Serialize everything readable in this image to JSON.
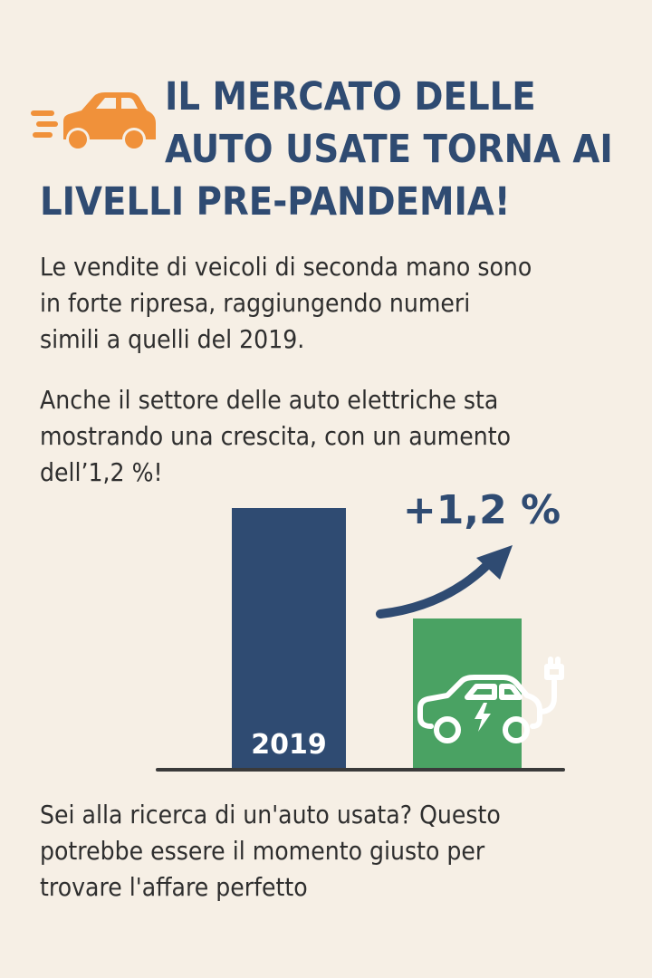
{
  "header": {
    "icon": "fast-car-icon",
    "title_lines": [
      "IL MERCATO DELLE",
      "AUTO USATE TORNA AI",
      "LIVELLI PRE-PANDEMIA!"
    ]
  },
  "paragraphs": {
    "intro": [
      "Le vendite di veicoli di seconda mano sono",
      "in forte ripresa, raggiungendo numeri",
      "simili a quelli del 2019."
    ],
    "electric": [
      "Anche il settore delle auto elettriche sta",
      "mostrando una crescita, con un aumento",
      "dell’1,2 %!"
    ],
    "closing": [
      "Sei alla ricerca di un'auto usata? Questo",
      "potrebbe essere il momento giusto per",
      "trovare l'affare perfetto"
    ]
  },
  "chart_data": {
    "type": "bar",
    "categories": [
      "2019",
      ""
    ],
    "bar_labels": [
      "2019",
      ""
    ],
    "annotation": "+1,2 %",
    "icons": [
      "",
      "electric-car-plug-icon"
    ],
    "colors": [
      "#2f4b72",
      "#4aa263"
    ]
  },
  "colors": {
    "background": "#f6efe5",
    "headline": "#2f4b72",
    "text": "#2e2e2e",
    "accent_orange": "#f0913a",
    "electric_green": "#4aa263"
  }
}
